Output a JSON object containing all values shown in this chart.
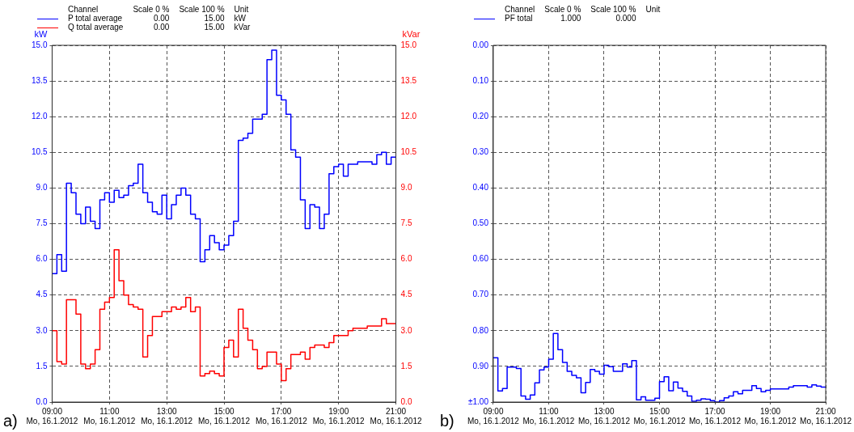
{
  "chart_data": [
    {
      "type": "step",
      "ylabel": "kW",
      "y2label": "kVar",
      "legend_title": "Channel",
      "legend": "top left",
      "grid": true,
      "marker": "none",
      "annotations": [
        "Scale 0 %",
        "Scale 100 %",
        "Unit",
        "0.00",
        "15.00",
        "kW",
        "0.00",
        "15.00",
        "kVar",
        "a)"
      ],
      "xlim": [
        "2012-01-16T09:00",
        "2012-01-16T21:00"
      ],
      "xticks": [
        {
          "value": "2012-01-16T09:00",
          "label": "09:00\nMo, 16.1.2012"
        },
        {
          "value": "2012-01-16T11:00",
          "label": "11:00\nMo, 16.1.2012"
        },
        {
          "value": "2012-01-16T13:00",
          "label": "13:00\nMo, 16.1.2012"
        },
        {
          "value": "2012-01-16T15:00",
          "label": "15:00\nMo, 16.1.2012"
        },
        {
          "value": "2012-01-16T17:00",
          "label": "17:00\nMo, 16.1.2012"
        },
        {
          "value": "2012-01-16T19:00",
          "label": "19:00\nMo, 16.1.2012"
        },
        {
          "value": "2012-01-16T21:00",
          "label": "21:00\nMo, 16.1.2012"
        }
      ],
      "ylim": [
        0,
        15
      ],
      "yticks": [
        {
          "value": 0,
          "label": "0.0"
        },
        1.5,
        {
          "value": 3,
          "label": "3.0"
        },
        4.5,
        {
          "value": 6,
          "label": "6.0"
        },
        7.5,
        {
          "value": 9,
          "label": "9.0"
        },
        10.5,
        {
          "value": 12,
          "label": "12.0"
        },
        13.5,
        {
          "value": 15,
          "label": "15.0"
        }
      ],
      "y2lim": [
        0,
        15
      ],
      "y2ticks": [
        {
          "value": 0,
          "label": "0.0"
        },
        1.5,
        {
          "value": 3,
          "label": "3.0"
        },
        4.5,
        {
          "value": 6,
          "label": "6.0"
        },
        7.5,
        {
          "value": 9,
          "label": "9.0"
        },
        10.5,
        {
          "value": 12,
          "label": "12.0"
        },
        13.5,
        {
          "value": 15,
          "label": "15.0"
        }
      ],
      "series": [
        {
          "name": "P total average",
          "color": "#0000ff",
          "x": [
            "2012-01-16T09:00",
            "2012-01-16T09:10",
            "2012-01-16T09:20",
            "2012-01-16T09:30",
            "2012-01-16T09:40",
            "2012-01-16T09:50",
            "2012-01-16T10:00",
            "2012-01-16T10:10",
            "2012-01-16T10:20",
            "2012-01-16T10:30",
            "2012-01-16T10:40",
            "2012-01-16T10:50",
            "2012-01-16T11:00",
            "2012-01-16T11:10",
            "2012-01-16T11:20",
            "2012-01-16T11:30",
            "2012-01-16T11:40",
            "2012-01-16T11:50",
            "2012-01-16T12:00",
            "2012-01-16T12:10",
            "2012-01-16T12:20",
            "2012-01-16T12:30",
            "2012-01-16T12:40",
            "2012-01-16T12:50",
            "2012-01-16T13:00",
            "2012-01-16T13:10",
            "2012-01-16T13:20",
            "2012-01-16T13:30",
            "2012-01-16T13:40",
            "2012-01-16T13:50",
            "2012-01-16T14:00",
            "2012-01-16T14:10",
            "2012-01-16T14:20",
            "2012-01-16T14:30",
            "2012-01-16T14:40",
            "2012-01-16T14:50",
            "2012-01-16T15:00",
            "2012-01-16T15:10",
            "2012-01-16T15:20",
            "2012-01-16T15:30",
            "2012-01-16T15:40",
            "2012-01-16T15:50",
            "2012-01-16T16:00",
            "2012-01-16T16:10",
            "2012-01-16T16:20",
            "2012-01-16T16:30",
            "2012-01-16T16:40",
            "2012-01-16T16:50",
            "2012-01-16T17:00",
            "2012-01-16T17:10",
            "2012-01-16T17:20",
            "2012-01-16T17:30",
            "2012-01-16T17:40",
            "2012-01-16T17:50",
            "2012-01-16T18:00",
            "2012-01-16T18:10",
            "2012-01-16T18:20",
            "2012-01-16T18:30",
            "2012-01-16T18:40",
            "2012-01-16T18:50",
            "2012-01-16T19:00",
            "2012-01-16T19:10",
            "2012-01-16T19:20",
            "2012-01-16T19:40",
            "2012-01-16T20:10",
            "2012-01-16T20:20",
            "2012-01-16T20:30",
            "2012-01-16T20:40",
            "2012-01-16T20:50",
            "2012-01-16T21:00"
          ],
          "values": [
            5.4,
            6.2,
            5.5,
            9.2,
            8.8,
            7.9,
            7.5,
            8.2,
            7.6,
            7.3,
            8.5,
            8.8,
            8.4,
            8.9,
            8.6,
            8.7,
            9.1,
            9.2,
            10.0,
            8.8,
            8.4,
            8.0,
            7.9,
            8.7,
            7.7,
            8.3,
            8.7,
            9.0,
            8.7,
            7.9,
            7.7,
            5.9,
            6.4,
            7.0,
            6.7,
            6.4,
            6.6,
            7.0,
            7.6,
            11.0,
            11.1,
            11.3,
            11.9,
            11.9,
            12.1,
            14.4,
            14.8,
            12.9,
            12.7,
            12.1,
            10.6,
            10.3,
            8.5,
            7.3,
            8.3,
            8.2,
            7.3,
            7.9,
            9.6,
            9.9,
            10.0,
            9.5,
            10.0,
            10.1,
            10.0,
            10.4,
            10.5,
            10.0,
            10.3,
            10.3
          ]
        },
        {
          "name": "Q total average",
          "color": "#ff0000",
          "axis": "y2",
          "x": [
            "2012-01-16T09:00",
            "2012-01-16T09:10",
            "2012-01-16T09:20",
            "2012-01-16T09:30",
            "2012-01-16T09:50",
            "2012-01-16T10:00",
            "2012-01-16T10:10",
            "2012-01-16T10:20",
            "2012-01-16T10:30",
            "2012-01-16T10:40",
            "2012-01-16T10:50",
            "2012-01-16T11:00",
            "2012-01-16T11:10",
            "2012-01-16T11:20",
            "2012-01-16T11:30",
            "2012-01-16T11:40",
            "2012-01-16T11:50",
            "2012-01-16T12:00",
            "2012-01-16T12:10",
            "2012-01-16T12:20",
            "2012-01-16T12:30",
            "2012-01-16T12:50",
            "2012-01-16T13:00",
            "2012-01-16T13:10",
            "2012-01-16T13:20",
            "2012-01-16T13:30",
            "2012-01-16T13:40",
            "2012-01-16T13:50",
            "2012-01-16T14:00",
            "2012-01-16T14:10",
            "2012-01-16T14:20",
            "2012-01-16T14:30",
            "2012-01-16T14:40",
            "2012-01-16T14:50",
            "2012-01-16T15:00",
            "2012-01-16T15:10",
            "2012-01-16T15:20",
            "2012-01-16T15:30",
            "2012-01-16T15:40",
            "2012-01-16T15:50",
            "2012-01-16T16:00",
            "2012-01-16T16:10",
            "2012-01-16T16:20",
            "2012-01-16T16:30",
            "2012-01-16T16:50",
            "2012-01-16T17:00",
            "2012-01-16T17:10",
            "2012-01-16T17:20",
            "2012-01-16T17:40",
            "2012-01-16T17:50",
            "2012-01-16T18:00",
            "2012-01-16T18:10",
            "2012-01-16T18:30",
            "2012-01-16T18:40",
            "2012-01-16T18:50",
            "2012-01-16T19:00",
            "2012-01-16T19:10",
            "2012-01-16T19:20",
            "2012-01-16T19:30",
            "2012-01-16T19:40",
            "2012-01-16T20:00",
            "2012-01-16T20:10",
            "2012-01-16T20:30",
            "2012-01-16T20:40",
            "2012-01-16T20:50",
            "2012-01-16T21:00"
          ],
          "values": [
            3.0,
            1.7,
            1.6,
            4.3,
            3.7,
            1.6,
            1.4,
            1.6,
            2.2,
            3.9,
            4.2,
            4.4,
            6.4,
            5.1,
            4.5,
            4.1,
            4.0,
            3.9,
            1.9,
            2.8,
            3.6,
            3.8,
            3.8,
            4.0,
            3.9,
            4.0,
            4.4,
            3.8,
            4.0,
            1.1,
            1.2,
            1.3,
            1.2,
            1.1,
            2.3,
            2.6,
            1.9,
            3.9,
            3.1,
            2.6,
            2.2,
            1.4,
            1.5,
            2.1,
            1.6,
            0.9,
            1.4,
            2.0,
            2.1,
            1.8,
            2.3,
            2.4,
            2.3,
            2.5,
            2.8,
            2.8,
            2.8,
            3.0,
            3.1,
            3.1,
            3.2,
            3.2,
            3.5,
            3.3,
            3.3,
            3.3
          ]
        }
      ]
    },
    {
      "type": "step",
      "legend_title": "Channel",
      "legend": "top left",
      "grid": true,
      "marker": "none",
      "annotations": [
        "Scale 0 %",
        "Scale 100 %",
        "Unit",
        "1.000",
        "0.000",
        "b)"
      ],
      "xlim": [
        "2012-01-16T09:00",
        "2012-01-16T21:00"
      ],
      "xticks": [
        {
          "value": "2012-01-16T09:00",
          "label": "09:00\nMo, 16.1.2012"
        },
        {
          "value": "2012-01-16T11:00",
          "label": "11:00\nMo, 16.1.2012"
        },
        {
          "value": "2012-01-16T13:00",
          "label": "13:00\nMo, 16.1.2012"
        },
        {
          "value": "2012-01-16T15:00",
          "label": "15:00\nMo, 16.1.2012"
        },
        {
          "value": "2012-01-16T17:00",
          "label": "17:00\nMo, 16.1.2012"
        },
        {
          "value": "2012-01-16T19:00",
          "label": "19:00\nMo, 16.1.2012"
        },
        {
          "value": "2012-01-16T21:00",
          "label": "21:00\nMo, 16.1.2012"
        }
      ],
      "ylim": [
        1,
        0
      ],
      "yticks": [
        {
          "value": 0,
          "label": "0.00"
        },
        {
          "value": 0.1,
          "label": "0.10"
        },
        {
          "value": 0.2,
          "label": "0.20"
        },
        {
          "value": 0.3,
          "label": "0.30"
        },
        {
          "value": 0.4,
          "label": "0.40"
        },
        {
          "value": 0.5,
          "label": "0.50"
        },
        {
          "value": 0.6,
          "label": "0.60"
        },
        {
          "value": 0.7,
          "label": "0.70"
        },
        {
          "value": 0.8,
          "label": "0.80"
        },
        {
          "value": 0.9,
          "label": "0.90"
        },
        {
          "value": 1,
          "label": "±1.00"
        }
      ],
      "series": [
        {
          "name": "PF total",
          "color": "#0000ff",
          "x": [
            "2012-01-16T09:00",
            "2012-01-16T09:10",
            "2012-01-16T09:20",
            "2012-01-16T09:30",
            "2012-01-16T09:50",
            "2012-01-16T10:00",
            "2012-01-16T10:10",
            "2012-01-16T10:20",
            "2012-01-16T10:30",
            "2012-01-16T10:40",
            "2012-01-16T10:50",
            "2012-01-16T11:00",
            "2012-01-16T11:10",
            "2012-01-16T11:20",
            "2012-01-16T11:30",
            "2012-01-16T11:40",
            "2012-01-16T11:50",
            "2012-01-16T12:00",
            "2012-01-16T12:10",
            "2012-01-16T12:20",
            "2012-01-16T12:30",
            "2012-01-16T12:40",
            "2012-01-16T12:50",
            "2012-01-16T13:00",
            "2012-01-16T13:10",
            "2012-01-16T13:20",
            "2012-01-16T13:40",
            "2012-01-16T13:50",
            "2012-01-16T14:00",
            "2012-01-16T14:10",
            "2012-01-16T14:20",
            "2012-01-16T14:30",
            "2012-01-16T14:50",
            "2012-01-16T15:00",
            "2012-01-16T15:10",
            "2012-01-16T15:20",
            "2012-01-16T15:30",
            "2012-01-16T15:40",
            "2012-01-16T15:50",
            "2012-01-16T16:00",
            "2012-01-16T16:10",
            "2012-01-16T16:20",
            "2012-01-16T16:30",
            "2012-01-16T16:40",
            "2012-01-16T16:50",
            "2012-01-16T17:00",
            "2012-01-16T17:10",
            "2012-01-16T17:20",
            "2012-01-16T17:30",
            "2012-01-16T17:40",
            "2012-01-16T17:50",
            "2012-01-16T18:00",
            "2012-01-16T18:20",
            "2012-01-16T18:30",
            "2012-01-16T18:40",
            "2012-01-16T18:50",
            "2012-01-16T19:00",
            "2012-01-16T19:40",
            "2012-01-16T19:50",
            "2012-01-16T20:20",
            "2012-01-16T20:30",
            "2012-01-16T20:40",
            "2012-01-16T20:50",
            "2012-01-16T21:00"
          ],
          "values": [
            0.876,
            0.969,
            0.962,
            0.902,
            0.906,
            0.983,
            0.992,
            0.98,
            0.946,
            0.91,
            0.902,
            0.88,
            0.808,
            0.853,
            0.889,
            0.914,
            0.925,
            0.932,
            0.974,
            0.945,
            0.909,
            0.914,
            0.922,
            0.897,
            0.901,
            0.914,
            0.893,
            0.902,
            0.884,
            0.994,
            0.985,
            0.995,
            0.989,
            0.943,
            0.929,
            0.968,
            0.944,
            0.961,
            0.97,
            0.983,
            0.998,
            0.995,
            0.991,
            0.992,
            0.996,
            1.0,
            0.996,
            0.988,
            0.983,
            0.971,
            0.977,
            0.967,
            0.954,
            0.962,
            0.971,
            0.967,
            0.963,
            0.958,
            0.954,
            0.958,
            0.952,
            0.955,
            0.958,
            0.958
          ]
        }
      ]
    }
  ]
}
